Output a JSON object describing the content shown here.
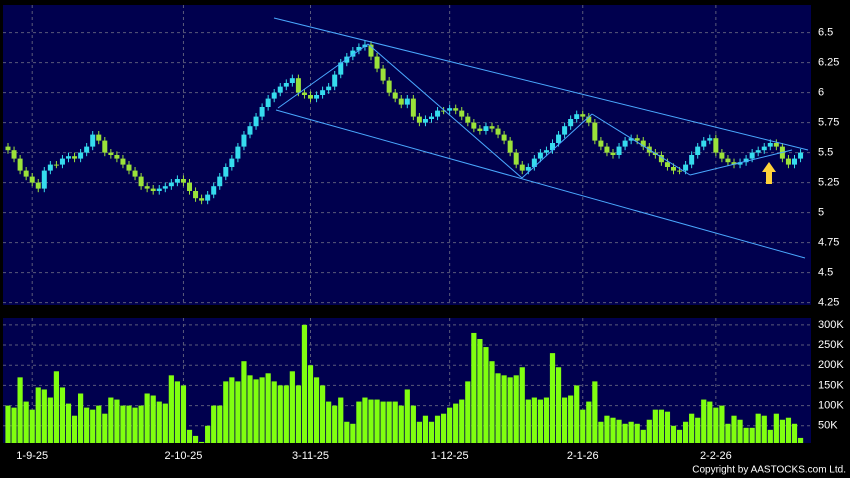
{
  "chart_data": [
    {
      "type": "candlestick",
      "grid": true,
      "up_color": "#36dcee",
      "down_color": "#9be23a",
      "background": "#00004e",
      "categories": [
        null,
        null,
        null,
        null,
        "1-9-25",
        null,
        null,
        null,
        null,
        null,
        null,
        null,
        null,
        null,
        null,
        null,
        null,
        null,
        null,
        null,
        null,
        null,
        null,
        null,
        null,
        null,
        null,
        null,
        null,
        "2-10-25",
        null,
        null,
        null,
        null,
        null,
        null,
        null,
        null,
        null,
        null,
        null,
        null,
        null,
        null,
        null,
        null,
        null,
        null,
        null,
        null,
        "3-11-25",
        null,
        null,
        null,
        null,
        null,
        null,
        null,
        null,
        null,
        null,
        null,
        null,
        null,
        null,
        null,
        null,
        null,
        null,
        null,
        null,
        null,
        null,
        "1-12-25",
        null,
        null,
        null,
        null,
        null,
        null,
        null,
        null,
        null,
        null,
        null,
        null,
        null,
        null,
        null,
        null,
        null,
        null,
        null,
        null,
        null,
        "2-1-26",
        null,
        null,
        null,
        null,
        null,
        null,
        null,
        null,
        null,
        null,
        null,
        null,
        null,
        null,
        null,
        null,
        null,
        null,
        null,
        null,
        null,
        "2-2-26",
        null,
        null,
        null,
        null,
        null,
        null,
        null,
        null,
        null,
        null,
        null,
        null,
        null,
        null
      ],
      "open": [
        5.55,
        5.52,
        5.45,
        5.35,
        5.3,
        5.25,
        5.2,
        5.35,
        5.4,
        5.4,
        5.45,
        5.47,
        5.45,
        5.5,
        5.55,
        5.65,
        5.6,
        5.5,
        5.48,
        5.45,
        5.4,
        5.35,
        5.3,
        5.22,
        5.2,
        5.18,
        5.2,
        5.22,
        5.25,
        5.28,
        5.25,
        5.18,
        5.12,
        5.1,
        5.15,
        5.22,
        5.3,
        5.38,
        5.45,
        5.55,
        5.65,
        5.72,
        5.8,
        5.88,
        5.95,
        6.0,
        6.05,
        6.08,
        6.12,
        6.0,
        5.98,
        5.95,
        5.98,
        6.02,
        6.05,
        6.15,
        6.25,
        6.3,
        6.35,
        6.38,
        6.4,
        6.3,
        6.2,
        6.1,
        6.0,
        5.95,
        5.9,
        5.95,
        5.8,
        5.75,
        5.78,
        5.8,
        5.85,
        5.85,
        5.87,
        5.85,
        5.8,
        5.75,
        5.7,
        5.68,
        5.72,
        5.7,
        5.65,
        5.6,
        5.5,
        5.4,
        5.35,
        5.38,
        5.45,
        5.5,
        5.52,
        5.58,
        5.65,
        5.72,
        5.78,
        5.82,
        5.8,
        5.75,
        5.6,
        5.55,
        5.5,
        5.48,
        5.55,
        5.6,
        5.62,
        5.6,
        5.55,
        5.5,
        5.48,
        5.42,
        5.38,
        5.35,
        5.35,
        5.4,
        5.48,
        5.55,
        5.6,
        5.62,
        5.5,
        5.45,
        5.42,
        5.4,
        5.42,
        5.45,
        5.5,
        5.52,
        5.55,
        5.58,
        5.55,
        5.45,
        5.4,
        5.45
      ],
      "high": [
        5.58,
        5.55,
        5.48,
        5.38,
        5.33,
        5.28,
        5.38,
        5.43,
        5.43,
        5.48,
        5.5,
        5.5,
        5.53,
        5.58,
        5.68,
        5.68,
        5.63,
        5.53,
        5.51,
        5.48,
        5.43,
        5.38,
        5.33,
        5.25,
        5.23,
        5.23,
        5.25,
        5.28,
        5.31,
        5.31,
        5.28,
        5.21,
        5.15,
        5.18,
        5.25,
        5.33,
        5.41,
        5.48,
        5.58,
        5.68,
        5.75,
        5.83,
        5.91,
        5.98,
        6.03,
        6.08,
        6.11,
        6.15,
        6.15,
        6.03,
        6.01,
        6.01,
        6.05,
        6.08,
        6.18,
        6.28,
        6.33,
        6.38,
        6.41,
        6.43,
        6.43,
        6.33,
        6.23,
        6.13,
        6.03,
        5.98,
        5.98,
        5.98,
        5.83,
        5.81,
        5.83,
        5.88,
        5.88,
        5.9,
        5.9,
        5.88,
        5.83,
        5.78,
        5.73,
        5.75,
        5.75,
        5.73,
        5.68,
        5.63,
        5.53,
        5.43,
        5.41,
        5.48,
        5.53,
        5.55,
        5.61,
        5.68,
        5.75,
        5.81,
        5.85,
        5.85,
        5.83,
        5.78,
        5.63,
        5.58,
        5.53,
        5.58,
        5.63,
        5.65,
        5.65,
        5.63,
        5.58,
        5.53,
        5.51,
        5.45,
        5.41,
        5.38,
        5.43,
        5.51,
        5.58,
        5.63,
        5.65,
        5.65,
        5.53,
        5.48,
        5.45,
        5.45,
        5.48,
        5.53,
        5.55,
        5.58,
        5.61,
        5.61,
        5.58,
        5.48,
        5.48,
        5.53
      ],
      "low": [
        5.49,
        5.42,
        5.32,
        5.27,
        5.22,
        5.17,
        5.17,
        5.32,
        5.37,
        5.37,
        5.42,
        5.42,
        5.42,
        5.47,
        5.52,
        5.57,
        5.47,
        5.45,
        5.42,
        5.37,
        5.32,
        5.27,
        5.19,
        5.17,
        5.15,
        5.15,
        5.17,
        5.19,
        5.22,
        5.22,
        5.15,
        5.09,
        5.07,
        5.07,
        5.12,
        5.19,
        5.27,
        5.35,
        5.42,
        5.52,
        5.62,
        5.69,
        5.77,
        5.85,
        5.92,
        5.97,
        6.02,
        6.05,
        5.97,
        5.95,
        5.92,
        5.92,
        5.95,
        5.99,
        6.02,
        6.12,
        6.22,
        6.27,
        6.32,
        6.35,
        6.27,
        6.17,
        6.07,
        5.97,
        5.92,
        5.87,
        5.87,
        5.77,
        5.72,
        5.72,
        5.75,
        5.77,
        5.82,
        5.82,
        5.82,
        5.77,
        5.72,
        5.67,
        5.65,
        5.65,
        5.67,
        5.62,
        5.57,
        5.47,
        5.37,
        5.32,
        5.32,
        5.35,
        5.42,
        5.47,
        5.49,
        5.55,
        5.62,
        5.69,
        5.75,
        5.77,
        5.72,
        5.57,
        5.52,
        5.47,
        5.45,
        5.45,
        5.52,
        5.57,
        5.57,
        5.52,
        5.47,
        5.45,
        5.39,
        5.35,
        5.32,
        5.32,
        5.32,
        5.37,
        5.45,
        5.52,
        5.57,
        5.47,
        5.42,
        5.39,
        5.37,
        5.37,
        5.39,
        5.42,
        5.47,
        5.49,
        5.52,
        5.52,
        5.42,
        5.37,
        5.37,
        5.42
      ],
      "close": [
        5.52,
        5.45,
        5.35,
        5.3,
        5.25,
        5.2,
        5.35,
        5.4,
        5.4,
        5.45,
        5.47,
        5.45,
        5.5,
        5.55,
        5.65,
        5.6,
        5.5,
        5.48,
        5.45,
        5.4,
        5.35,
        5.3,
        5.22,
        5.2,
        5.18,
        5.2,
        5.22,
        5.25,
        5.28,
        5.25,
        5.18,
        5.12,
        5.1,
        5.15,
        5.22,
        5.3,
        5.38,
        5.45,
        5.55,
        5.65,
        5.72,
        5.8,
        5.88,
        5.95,
        6.0,
        6.05,
        6.08,
        6.12,
        6.0,
        5.98,
        5.95,
        5.98,
        6.02,
        6.05,
        6.15,
        6.25,
        6.3,
        6.35,
        6.38,
        6.4,
        6.3,
        6.2,
        6.1,
        6.0,
        5.95,
        5.9,
        5.95,
        5.8,
        5.75,
        5.78,
        5.8,
        5.85,
        5.85,
        5.87,
        5.85,
        5.8,
        5.75,
        5.7,
        5.68,
        5.72,
        5.7,
        5.65,
        5.6,
        5.5,
        5.4,
        5.35,
        5.38,
        5.45,
        5.5,
        5.52,
        5.58,
        5.65,
        5.72,
        5.78,
        5.82,
        5.8,
        5.75,
        5.6,
        5.55,
        5.5,
        5.48,
        5.55,
        5.6,
        5.62,
        5.6,
        5.55,
        5.5,
        5.48,
        5.42,
        5.38,
        5.35,
        5.35,
        5.4,
        5.48,
        5.55,
        5.6,
        5.62,
        5.5,
        5.45,
        5.42,
        5.4,
        5.42,
        5.45,
        5.5,
        5.52,
        5.55,
        5.58,
        5.55,
        5.45,
        5.4,
        5.45,
        5.5
      ],
      "ylim": [
        4.23,
        6.73
      ],
      "yticks": [
        4.25,
        4.5,
        4.75,
        5,
        5.25,
        5.5,
        5.75,
        6,
        6.25,
        6.5
      ]
    },
    {
      "type": "bar",
      "grid": true,
      "color": "#80ff10",
      "background": "#00004e",
      "values": [
        100000,
        95000,
        170000,
        110000,
        90000,
        145000,
        140000,
        120000,
        185000,
        145000,
        105000,
        75000,
        130000,
        95000,
        90000,
        100000,
        80000,
        120000,
        115000,
        100000,
        100000,
        95000,
        100000,
        130000,
        125000,
        110000,
        105000,
        175000,
        160000,
        150000,
        40000,
        25000,
        10000,
        50000,
        100000,
        100000,
        160000,
        170000,
        160000,
        210000,
        175000,
        165000,
        170000,
        180000,
        160000,
        150000,
        150000,
        185000,
        150000,
        300000,
        200000,
        170000,
        150000,
        110000,
        100000,
        120000,
        60000,
        55000,
        110000,
        120000,
        115000,
        115000,
        110000,
        110000,
        110000,
        100000,
        140000,
        100000,
        60000,
        75000,
        60000,
        75000,
        80000,
        95000,
        105000,
        115000,
        160000,
        280000,
        265000,
        245000,
        210000,
        180000,
        175000,
        170000,
        175000,
        195000,
        115000,
        120000,
        115000,
        120000,
        230000,
        195000,
        120000,
        125000,
        150000,
        90000,
        110000,
        160000,
        60000,
        75000,
        70000,
        65000,
        55000,
        60000,
        55000,
        40000,
        65000,
        90000,
        90000,
        85000,
        50000,
        40000,
        60000,
        80000,
        70000,
        115000,
        110000,
        95000,
        100000,
        55000,
        75000,
        65000,
        45000,
        45000,
        80000,
        75000,
        40000,
        80000,
        65000,
        70000,
        55000,
        20000
      ],
      "ylim": [
        7400,
        317000
      ],
      "yticks": [
        {
          "value": 50000,
          "label": "50K"
        },
        {
          "value": 100000,
          "label": "100K"
        },
        {
          "value": 150000,
          "label": "150K"
        },
        {
          "value": 200000,
          "label": "200K"
        },
        {
          "value": 250000,
          "label": "250K"
        },
        {
          "value": 300000,
          "label": "300K"
        }
      ]
    }
  ],
  "copyright": "Copyright by AASTOCKS.com Ltd."
}
